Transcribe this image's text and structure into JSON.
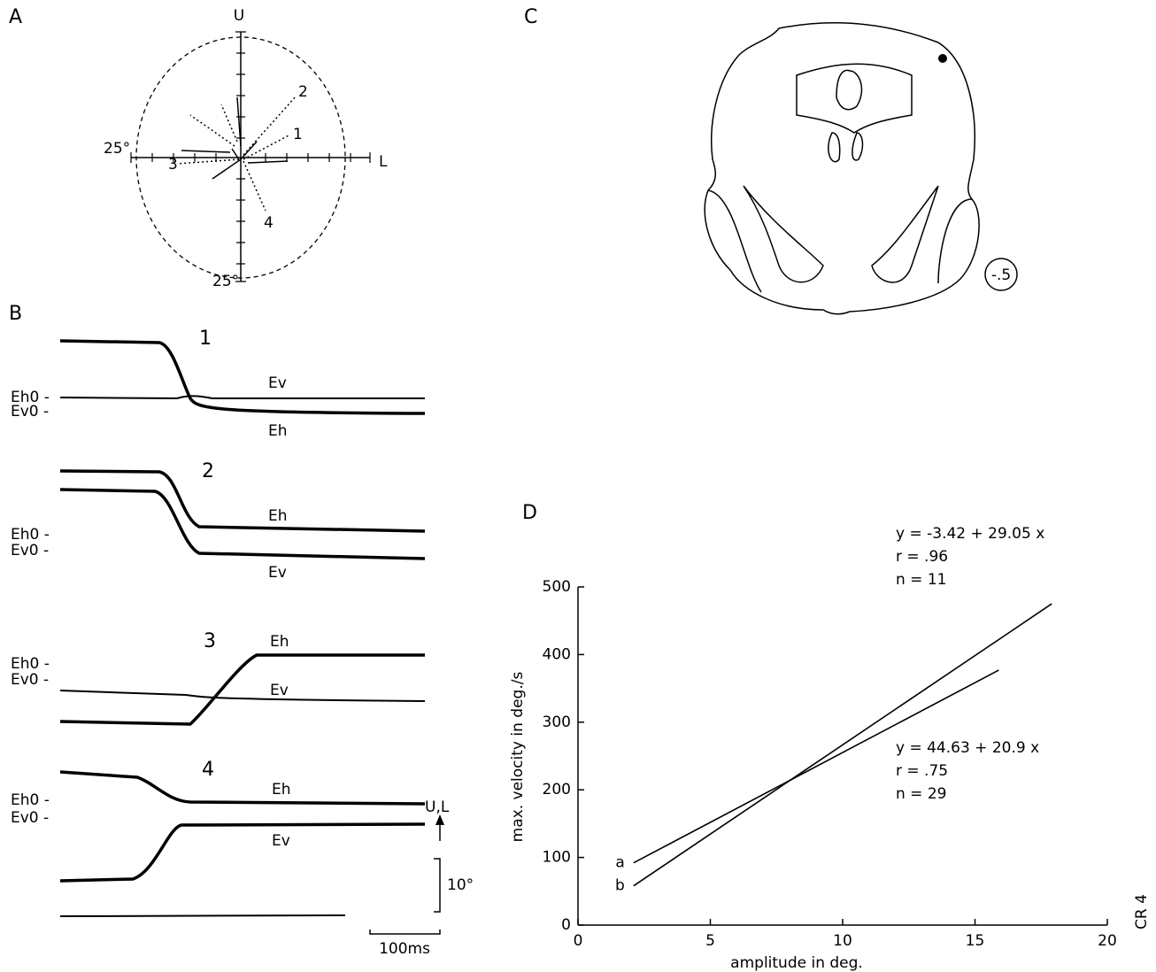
{
  "panel_a": {
    "label": "A",
    "up": "U",
    "left": "L",
    "scale_x": "25°",
    "scale_y": "25°",
    "traces": [
      "1",
      "2",
      "3",
      "4"
    ]
  },
  "panel_b": {
    "label": "B",
    "records": [
      {
        "number": "1",
        "eh_zero": "Eh0 -",
        "ev_zero": "Ev0 -",
        "upper": "Ev",
        "lower": "Eh"
      },
      {
        "number": "2",
        "eh_zero": "Eh0 -",
        "ev_zero": "Ev0 -",
        "upper": "Eh",
        "lower": "Ev"
      },
      {
        "number": "3",
        "eh_zero": "Eh0 -",
        "ev_zero": "Ev0 -",
        "upper": "Eh",
        "lower": "Ev"
      },
      {
        "number": "4",
        "eh_zero": "Eh0 -",
        "ev_zero": "Ev0 -",
        "upper": "Eh",
        "lower": "Ev"
      }
    ],
    "direction": "U,L",
    "amplitude_scale": "10°",
    "time_scale": "100ms"
  },
  "panel_c": {
    "label": "C",
    "level": "-.5"
  },
  "chart_data": {
    "type": "line",
    "title": "D",
    "x_label": "amplitude  in  deg.",
    "y_label": "max.  velocity  in  deg./s",
    "xlim": [
      0,
      20
    ],
    "ylim": [
      0,
      500
    ],
    "xticks": [
      0,
      5,
      10,
      15,
      20
    ],
    "yticks": [
      0,
      100,
      200,
      300,
      400,
      500
    ],
    "series": [
      {
        "name": "a",
        "color": "#000000",
        "x": [
          2.1,
          15.9
        ],
        "values": [
          92,
          377
        ]
      },
      {
        "name": "b",
        "color": "#000000",
        "x": [
          2.1,
          17.9
        ],
        "values": [
          58,
          475
        ]
      }
    ],
    "annotations": [
      [
        "y = -3.42 + 29.05 x",
        "r = .96",
        "n = 11"
      ],
      [
        "y = 44.63 + 20.9 x",
        "r = .75",
        "n = 29"
      ]
    ]
  },
  "code": "CR 4"
}
